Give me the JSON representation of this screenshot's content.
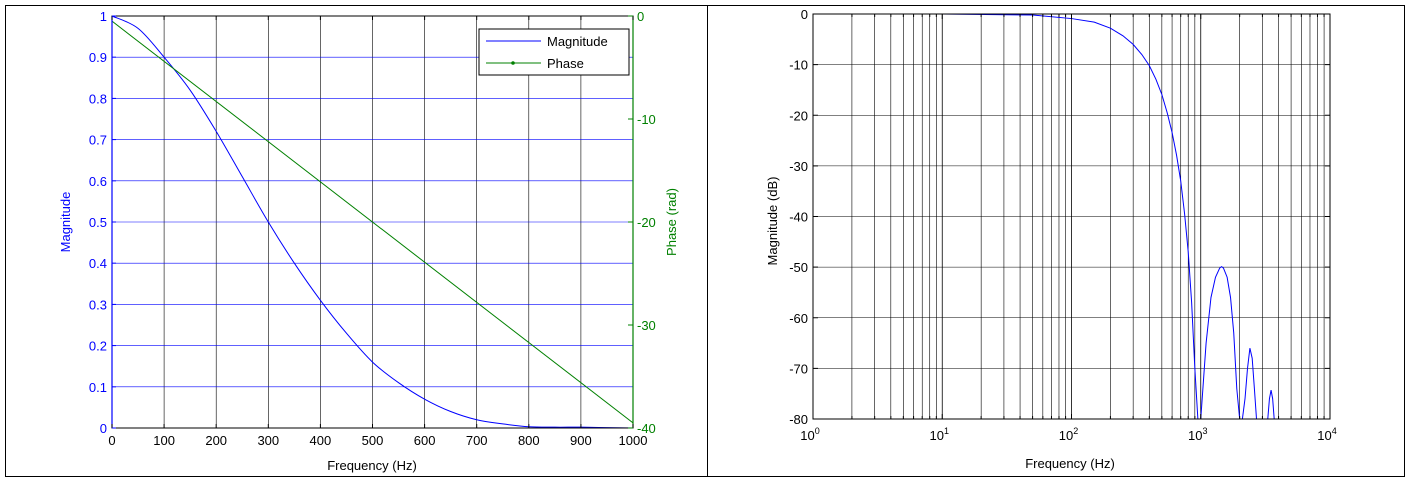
{
  "chart_data": [
    {
      "type": "line",
      "dual_axis": true,
      "title": "",
      "xlabel": "Frequency (Hz)",
      "ylabel_left": "Magnitude",
      "ylabel_right": "Phase (rad)",
      "xlim": [
        0,
        1000
      ],
      "ylim_left": [
        0,
        1
      ],
      "ylim_right": [
        -40,
        0
      ],
      "x_ticks": [
        "0",
        "100",
        "200",
        "300",
        "400",
        "500",
        "600",
        "700",
        "800",
        "900",
        "1000"
      ],
      "y_left_ticks": [
        "0",
        "0.1",
        "0.2",
        "0.3",
        "0.4",
        "0.5",
        "0.6",
        "0.7",
        "0.8",
        "0.9",
        "1"
      ],
      "y_right_ticks": [
        "0",
        "-10",
        "-20",
        "-30",
        "-40"
      ],
      "grid": true,
      "legend": {
        "placement": "top-right",
        "entries": [
          "Magnitude",
          "Phase"
        ]
      },
      "colors": {
        "magnitude": "#0000ff",
        "phase": "#008000",
        "left_axis": "#0000ff",
        "right_axis": "#008000"
      },
      "series": [
        {
          "name": "Magnitude",
          "axis": "left",
          "x": [
            0,
            50,
            100,
            150,
            200,
            250,
            300,
            350,
            400,
            450,
            500,
            550,
            600,
            650,
            700,
            750,
            800,
            850,
            900,
            950,
            1000
          ],
          "y": [
            1.0,
            0.97,
            0.9,
            0.82,
            0.72,
            0.61,
            0.5,
            0.4,
            0.31,
            0.23,
            0.16,
            0.11,
            0.07,
            0.04,
            0.02,
            0.01,
            0.003,
            0.002,
            0.002,
            0.001,
            0.0
          ]
        },
        {
          "name": "Phase",
          "axis": "right",
          "x": [
            0,
            1000
          ],
          "y": [
            -0.5,
            -39.5
          ]
        }
      ]
    },
    {
      "type": "line",
      "title": "",
      "xlabel": "Frequency (Hz)",
      "ylabel": "Magnitude (dB)",
      "x_scale": "log",
      "xlim": [
        1,
        10000
      ],
      "ylim": [
        -80,
        0
      ],
      "x_ticks": [
        {
          "base": "10",
          "exp": "0"
        },
        {
          "base": "10",
          "exp": "1"
        },
        {
          "base": "10",
          "exp": "2"
        },
        {
          "base": "10",
          "exp": "3"
        },
        {
          "base": "10",
          "exp": "4"
        }
      ],
      "y_ticks": [
        "0",
        "-10",
        "-20",
        "-30",
        "-40",
        "-50",
        "-60",
        "-70",
        "-80"
      ],
      "grid": true,
      "colors": {
        "line": "#0000ff"
      },
      "series": [
        {
          "x": [
            1,
            10,
            50,
            100,
            150,
            200,
            250,
            300,
            350,
            400,
            450,
            500,
            550,
            600,
            650,
            700,
            750,
            800,
            850,
            900,
            950,
            1000,
            1100,
            1200,
            1300,
            1400,
            1450,
            1500,
            1600,
            1700,
            1800,
            1900,
            2000,
            2100,
            2200,
            2300,
            2400,
            2500,
            2600,
            2700,
            2800,
            2900,
            3000,
            3100,
            3200,
            3300,
            3400,
            3500,
            3600,
            3700
          ],
          "y": [
            0,
            0,
            -0.2,
            -0.9,
            -1.6,
            -2.8,
            -4.3,
            -6.0,
            -8.0,
            -10.2,
            -12.9,
            -15.9,
            -19.5,
            -23.4,
            -27.9,
            -33.0,
            -39.5,
            -47.0,
            -57.0,
            -70.0,
            -80,
            -80,
            -65.0,
            -56.0,
            -52.0,
            -50.2,
            -49.9,
            -50.2,
            -52.0,
            -56.0,
            -63.0,
            -74.0,
            -80,
            -80,
            -76.0,
            -70.0,
            -66.0,
            -68.0,
            -74.0,
            -80,
            -80,
            -80,
            -80,
            -80,
            -80,
            -80,
            -76.0,
            -74.3,
            -76.0,
            -80
          ]
        }
      ]
    }
  ]
}
